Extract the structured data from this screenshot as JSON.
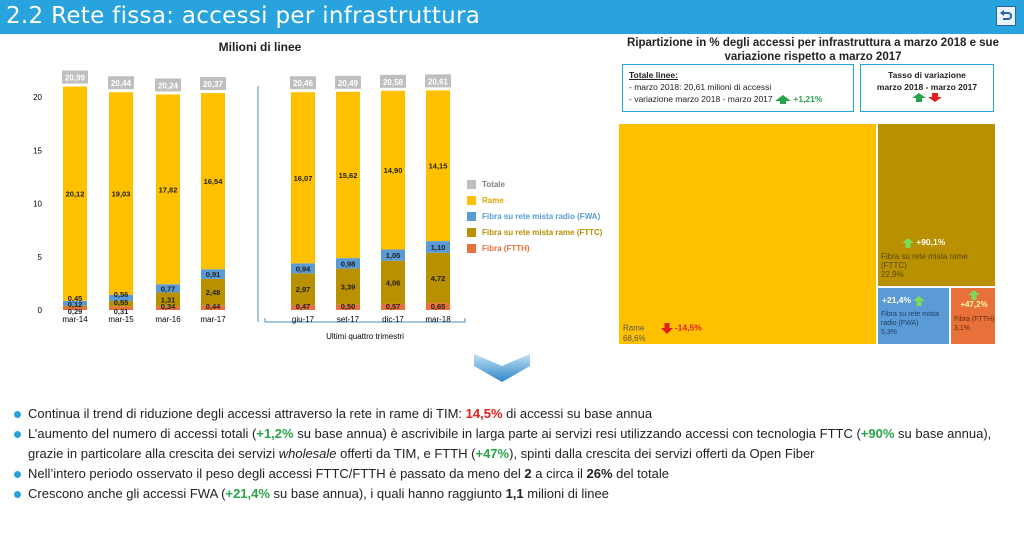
{
  "header": {
    "title": "2.2 Rete fissa: accessi per infrastruttura"
  },
  "chart_data": [
    {
      "type": "bar",
      "stacked": true,
      "title": "Milioni di linee",
      "xlabel_group2": "Ultimi quattro trimestri",
      "categories": [
        "mar-14",
        "mar-15",
        "mar-16",
        "mar-17",
        "giu-17",
        "set-17",
        "dic-17",
        "mar-18"
      ],
      "ylim": [
        0,
        22
      ],
      "yticks": [
        "0",
        "5",
        "10",
        "15",
        "20"
      ],
      "totals": [
        "20,99",
        "20,44",
        "20,24",
        "20,37",
        "20,46",
        "20,49",
        "20,58",
        "20,61"
      ],
      "series": [
        {
          "name": "Fibra (FTTH)",
          "color": "#e8703a",
          "values": [
            0.29,
            0.31,
            0.34,
            0.44,
            0.47,
            0.5,
            0.57,
            0.65
          ],
          "labels": [
            "0,29",
            "0,31",
            "0,34",
            "0,44",
            "0,47",
            "0,50",
            "0,57",
            "0,65"
          ]
        },
        {
          "name": "Fibra su rete mista rame (FTTC)",
          "color": "#b89000",
          "values": [
            0.12,
            0.55,
            1.31,
            2.48,
            2.97,
            3.39,
            4.06,
            4.72
          ],
          "labels": [
            "0,12",
            "0,55",
            "1,31",
            "2,48",
            "2,97",
            "3,39",
            "4,06",
            "4,72"
          ]
        },
        {
          "name": "Fibra su rete mista radio (FWA)",
          "color": "#5b9bd5",
          "values": [
            0.45,
            0.56,
            0.77,
            0.91,
            0.94,
            0.98,
            1.05,
            1.1
          ],
          "labels": [
            "0,45",
            "0,56",
            "0,77",
            "0,91",
            "0,94",
            "0,98",
            "1,05",
            "1,10"
          ]
        },
        {
          "name": "Rame",
          "color": "#ffc000",
          "values": [
            20.12,
            19.03,
            17.82,
            16.54,
            16.07,
            15.62,
            14.9,
            14.15
          ],
          "labels": [
            "20,12",
            "19,03",
            "17,82",
            "16,54",
            "16,07",
            "15,62",
            "14,90",
            "14,15"
          ]
        }
      ],
      "legend": [
        "Totale",
        "Rame",
        "Fibra su rete mista radio (FWA)",
        "Fibra su rete mista rame (FTTC)",
        "Fibra (FTTH)"
      ],
      "legend_colors": [
        "#bfbfbf",
        "#ffc000",
        "#5b9bd5",
        "#b89000",
        "#e8703a"
      ]
    },
    {
      "type": "treemap",
      "title": "Ripartizione in % degli accessi per infrastruttura a marzo 2018 e sue variazione rispetto a marzo 2017",
      "items": [
        {
          "name": "Rame",
          "share": "68,6%",
          "change": "-14,5%",
          "value": 68.6,
          "color": "#ffc000",
          "trend": "down"
        },
        {
          "name": "Fibra su rete mista rame (FTTC)",
          "share": "22,9%",
          "change": "+90,1%",
          "value": 22.9,
          "color": "#b89000",
          "trend": "up"
        },
        {
          "name": "Fibra su rete mista radio (FWA)",
          "share": "5,3%",
          "change": "+21,4%",
          "value": 5.3,
          "color": "#5b9bd5",
          "trend": "up"
        },
        {
          "name": "Fibra (FTTH)",
          "share": "3,1%",
          "change": "+47,2%",
          "value": 3.1,
          "color": "#e8703a",
          "trend": "up"
        }
      ]
    }
  ],
  "info_box": {
    "heading": "Totale linee:",
    "line1": "- marzo 2018: 20,61 milioni di accessi",
    "line2": "- variazione  marzo 2018 - marzo 2017",
    "change": "+1,21%"
  },
  "tasso_box": {
    "line1": "Tasso di variazione",
    "line2": "marzo 2018 - marzo 2017"
  },
  "bullets": [
    {
      "parts": [
        {
          "t": "Continua il trend di riduzione degli accessi attraverso la rete in rame di TIM: "
        },
        {
          "t": "14,5%",
          "c": "red"
        },
        {
          "t": " di accessi su base annua"
        }
      ]
    },
    {
      "parts": [
        {
          "t": "L’aumento del numero di accessi totali ("
        },
        {
          "t": "+1,2%",
          "c": "green"
        },
        {
          "t": " su base annua) è ascrivibile in larga parte ai servizi resi utilizzando accessi con tecnologia FTTC ("
        },
        {
          "t": "+90%",
          "c": "green"
        },
        {
          "t": " su base annua), grazie in particolare alla crescita dei servizi "
        },
        {
          "t": "wholesale",
          "c": "i"
        },
        {
          "t": " offerti da TIM, e FTTH ("
        },
        {
          "t": "+47%",
          "c": "green"
        },
        {
          "t": "), spinti dalla crescita dei servizi offerti da Open Fiber"
        }
      ]
    },
    {
      "parts": [
        {
          "t": "Nell’intero periodo osservato il peso degli accessi FTTC/FTTH è passato da meno del "
        },
        {
          "t": "2",
          "c": "b"
        },
        {
          "t": " a circa il "
        },
        {
          "t": "26%",
          "c": "b"
        },
        {
          "t": " del totale"
        }
      ]
    },
    {
      "parts": [
        {
          "t": "Crescono anche gli accessi FWA ("
        },
        {
          "t": "+21,4%",
          "c": "green"
        },
        {
          "t": " su base annua), i quali hanno raggiunto "
        },
        {
          "t": "1,1",
          "c": "b"
        },
        {
          "t": " milioni di linee"
        }
      ]
    }
  ]
}
